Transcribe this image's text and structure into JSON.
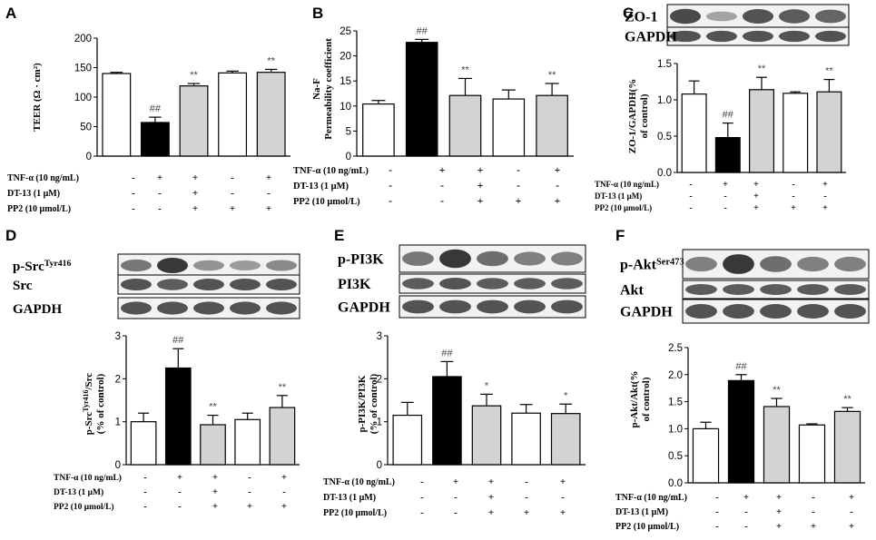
{
  "panels": [
    {
      "letter": "A",
      "chart_data": {
        "type": "bar",
        "categories": [
          "1",
          "2",
          "3",
          "4",
          "5"
        ],
        "values": [
          140,
          57,
          119,
          141,
          142
        ],
        "errors": [
          2,
          9,
          4,
          3,
          5
        ],
        "fills": [
          "#ffffff",
          "#000000",
          "#d3d3d3",
          "#ffffff",
          "#d3d3d3"
        ],
        "marks": [
          "",
          "##",
          "**",
          "",
          "**"
        ],
        "ylabel": "TEER (Ω · cm²)",
        "ylim": [
          0,
          200
        ],
        "yticks": [
          "0",
          "50",
          "100",
          "150",
          "200"
        ],
        "grid": false
      },
      "treatments": [
        {
          "label": "TNF-α (10 ng/mL)",
          "signs": [
            "-",
            "+",
            "+",
            "-",
            "+"
          ]
        },
        {
          "label": "DT-13 (1 μM)",
          "signs": [
            "-",
            "-",
            "+",
            "-",
            "-"
          ]
        },
        {
          "label": "PP2 (10 μmol/L)",
          "signs": [
            "-",
            "-",
            "+",
            "+",
            "+"
          ]
        }
      ]
    },
    {
      "letter": "B",
      "chart_data": {
        "type": "bar",
        "categories": [
          "1",
          "2",
          "3",
          "4",
          "5"
        ],
        "values": [
          10.4,
          22.7,
          12.1,
          11.4,
          12.1
        ],
        "errors": [
          0.7,
          0.6,
          3.4,
          1.8,
          2.4
        ],
        "fills": [
          "#ffffff",
          "#000000",
          "#d3d3d3",
          "#ffffff",
          "#d3d3d3"
        ],
        "marks": [
          "",
          "##",
          "**",
          "",
          "**"
        ],
        "ylabel": [
          "Na-F",
          "Permeability coefficient"
        ],
        "ylim": [
          0,
          25
        ],
        "yticks": [
          "0",
          "5",
          "10",
          "15",
          "20",
          "25"
        ],
        "grid": false
      },
      "treatments": [
        {
          "label": "TNF-α (10 ng/mL)",
          "signs": [
            "-",
            "+",
            "+",
            "-",
            "+"
          ]
        },
        {
          "label": "DT-13 (1 μM)",
          "signs": [
            "-",
            "-",
            "+",
            "-",
            "-"
          ]
        },
        {
          "label": "PP2 (10 μmol/L)",
          "signs": [
            "-",
            "-",
            "+",
            "+",
            "+"
          ]
        }
      ]
    },
    {
      "letter": "C",
      "blots": [
        "ZO-1",
        "GAPDH"
      ],
      "chart_data": {
        "type": "bar",
        "categories": [
          "1",
          "2",
          "3",
          "4",
          "5"
        ],
        "values": [
          1.08,
          0.48,
          1.14,
          1.09,
          1.11
        ],
        "errors": [
          0.18,
          0.2,
          0.17,
          0.02,
          0.17
        ],
        "fills": [
          "#ffffff",
          "#000000",
          "#d3d3d3",
          "#ffffff",
          "#d3d3d3"
        ],
        "marks": [
          "",
          "##",
          "**",
          "",
          "**"
        ],
        "ylabel": [
          "ZO-1/GAPDH(%",
          "of control)"
        ],
        "ylim": [
          0,
          1.5
        ],
        "yticks": [
          "0.0",
          "0.5",
          "1.0",
          "1.5"
        ],
        "grid": false
      },
      "treatments": [
        {
          "label": "TNF-α (10 ng/mL)",
          "signs": [
            "-",
            "+",
            "+",
            "-",
            "+"
          ]
        },
        {
          "label": "DT-13 (1 μM)",
          "signs": [
            "-",
            "-",
            "+",
            "-",
            "-"
          ]
        },
        {
          "label": "PP2 (10 μmol/L)",
          "signs": [
            "-",
            "-",
            "+",
            "+",
            "+"
          ]
        }
      ]
    },
    {
      "letter": "D",
      "blots": [
        "p-Src",
        "Src",
        "GAPDH"
      ],
      "blot_sup": "Tyr416",
      "chart_data": {
        "type": "bar",
        "categories": [
          "1",
          "2",
          "3",
          "4",
          "5"
        ],
        "values": [
          1.0,
          2.25,
          0.93,
          1.05,
          1.33
        ],
        "errors": [
          0.2,
          0.45,
          0.22,
          0.15,
          0.28
        ],
        "fills": [
          "#ffffff",
          "#000000",
          "#d3d3d3",
          "#ffffff",
          "#d3d3d3"
        ],
        "marks": [
          "",
          "##",
          "**",
          "",
          "**"
        ],
        "ylabel": [
          "p-Src/Src",
          "(% of control)"
        ],
        "ylabel_sup": "Tyr416",
        "ylim": [
          0,
          3
        ],
        "yticks": [
          "0",
          "1",
          "2",
          "3"
        ],
        "grid": false
      },
      "treatments": [
        {
          "label": "TNF-α (10 ng/mL)",
          "signs": [
            "-",
            "+",
            "+",
            "-",
            "+"
          ]
        },
        {
          "label": "DT-13 (1 μM)",
          "signs": [
            "-",
            "-",
            "+",
            "-",
            "-"
          ]
        },
        {
          "label": "PP2 (10 μmol/L)",
          "signs": [
            "-",
            "-",
            "+",
            "+",
            "+"
          ]
        }
      ]
    },
    {
      "letter": "E",
      "blots": [
        "p-PI3K",
        "PI3K",
        "GAPDH"
      ],
      "chart_data": {
        "type": "bar",
        "categories": [
          "1",
          "2",
          "3",
          "4",
          "5"
        ],
        "values": [
          1.15,
          2.05,
          1.37,
          1.2,
          1.19
        ],
        "errors": [
          0.3,
          0.35,
          0.27,
          0.2,
          0.22
        ],
        "fills": [
          "#ffffff",
          "#000000",
          "#d3d3d3",
          "#ffffff",
          "#d3d3d3"
        ],
        "marks": [
          "",
          "##",
          "*",
          "",
          "*"
        ],
        "ylabel": [
          "p-PI3K/PI3K",
          "(% of control)"
        ],
        "ylim": [
          0,
          3
        ],
        "yticks": [
          "0",
          "1",
          "2",
          "3"
        ],
        "grid": false
      },
      "treatments": [
        {
          "label": "TNF-α (10 ng/mL)",
          "signs": [
            "-",
            "+",
            "+",
            "-",
            "+"
          ]
        },
        {
          "label": "DT-13 (1 μM)",
          "signs": [
            "-",
            "-",
            "+",
            "-",
            "-"
          ]
        },
        {
          "label": "PP2 (10 μmol/L)",
          "signs": [
            "-",
            "-",
            "+",
            "+",
            "+"
          ]
        }
      ]
    },
    {
      "letter": "F",
      "blots": [
        "p-Akt",
        "Akt",
        "GAPDH"
      ],
      "blot_sup": "Ser473",
      "chart_data": {
        "type": "bar",
        "categories": [
          "1",
          "2",
          "3",
          "4",
          "5"
        ],
        "values": [
          1.0,
          1.89,
          1.41,
          1.07,
          1.32
        ],
        "errors": [
          0.12,
          0.11,
          0.15,
          0.02,
          0.07
        ],
        "fills": [
          "#ffffff",
          "#000000",
          "#d3d3d3",
          "#ffffff",
          "#d3d3d3"
        ],
        "marks": [
          "",
          "##",
          "**",
          "",
          "**"
        ],
        "ylabel": [
          "p-Akt/Akt(%",
          "of control)"
        ],
        "ylim": [
          0,
          2.5
        ],
        "yticks": [
          "0.0",
          "0.5",
          "1.0",
          "1.5",
          "2.0",
          "2.5"
        ],
        "grid": false
      },
      "treatments": [
        {
          "label": "TNF-α (10 ng/mL)",
          "signs": [
            "-",
            "+",
            "+",
            "-",
            "+"
          ]
        },
        {
          "label": "DT-13 (1 μM)",
          "signs": [
            "-",
            "-",
            "+",
            "-",
            "-"
          ]
        },
        {
          "label": "PP2 (10 μmol/L)",
          "signs": [
            "-",
            "-",
            "+",
            "+",
            "+"
          ]
        }
      ]
    }
  ]
}
